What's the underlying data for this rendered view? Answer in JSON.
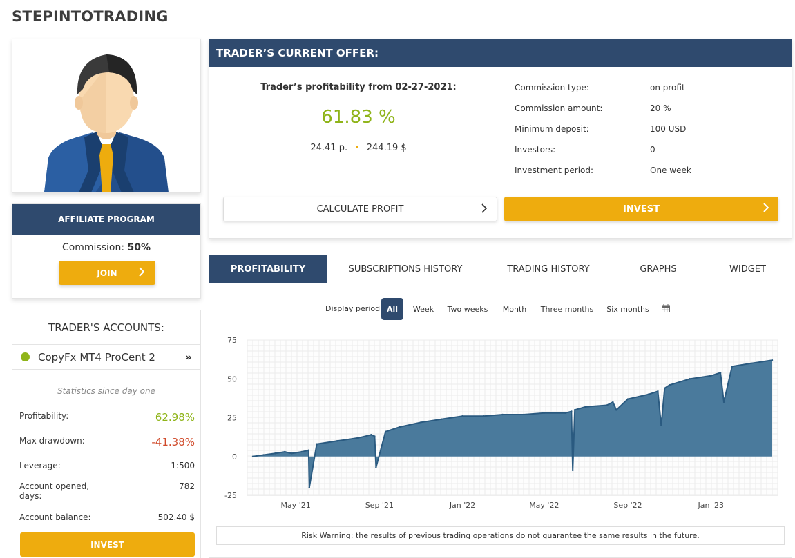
{
  "page": {
    "title": "STEPINTOTRADING"
  },
  "affiliate": {
    "header": "AFFILIATE PROGRAM",
    "commission_label": "Commission:",
    "commission_value": "50%",
    "join_label": "JOIN"
  },
  "accounts": {
    "header": "TRADER'S ACCOUNTS:",
    "account_name": "CopyFx MT4 ProCent 2",
    "status_color": "#8fb419",
    "stats_since": "Statistics since day one",
    "stats": {
      "profitability_label": "Profitability:",
      "profitability_value": "62.98%",
      "max_drawdown_label": "Max drawdown:",
      "max_drawdown_value": "-41.38%",
      "leverage_label": "Leverage:",
      "leverage_value": "1:500",
      "opened_label": "Account opened, days:",
      "opened_value": "782",
      "balance_label": "Account balance:",
      "balance_value": "502.40 $"
    },
    "invest_label": "INVEST"
  },
  "offer": {
    "header": "TRADER’S CURRENT OFFER:",
    "prof_label": "Trader’s profitability from 02-27-2021:",
    "prof_value": "61.83 %",
    "prof_points": "24.41 p.",
    "prof_money": "244.19 $",
    "commission_type_label": "Commission type:",
    "commission_type_value": "on profit",
    "commission_amount_label": "Commission amount:",
    "commission_amount_value": "20 %",
    "min_deposit_label": "Minimum deposit:",
    "min_deposit_value": "100 USD",
    "investors_label": "Investors:",
    "investors_value": "0",
    "period_label": "Investment period:",
    "period_value": "One week",
    "calculate_label": "CALCULATE PROFIT",
    "invest_label": "INVEST"
  },
  "tabs": [
    "PROFITABILITY",
    "SUBSCRIPTIONS HISTORY",
    "TRADING HISTORY",
    "GRAPHS",
    "WIDGET"
  ],
  "periods": {
    "label": "Display period:",
    "options": [
      "All",
      "Week",
      "Two weeks",
      "Month",
      "Three months",
      "Six months"
    ],
    "selected": "All"
  },
  "colors": {
    "accent": "#2f4a6e",
    "gold": "#eeac0e",
    "green": "#8fb419",
    "red": "#d04a2a",
    "area": "#4a7a9c"
  },
  "chart_data": {
    "type": "area",
    "title": "",
    "xlabel": "",
    "ylabel": "",
    "ylim": [
      -25,
      75
    ],
    "yticks": [
      75,
      50,
      25,
      0,
      -25
    ],
    "xticks": [
      {
        "label": "May '21",
        "date": "2021-05-01"
      },
      {
        "label": "Sep '21",
        "date": "2021-09-01"
      },
      {
        "label": "Jan '22",
        "date": "2022-01-01"
      },
      {
        "label": "May '22",
        "date": "2022-05-01"
      },
      {
        "label": "Sep '22",
        "date": "2022-09-01"
      },
      {
        "label": "Jan '23",
        "date": "2023-01-01"
      }
    ],
    "x": [
      "2021-02-27",
      "2021-03-15",
      "2021-04-01",
      "2021-04-15",
      "2021-04-25",
      "2021-05-10",
      "2021-05-20",
      "2021-05-21",
      "2021-06-01",
      "2021-07-01",
      "2021-08-01",
      "2021-08-20",
      "2021-08-25",
      "2021-08-27",
      "2021-09-10",
      "2021-10-01",
      "2021-11-01",
      "2021-12-01",
      "2022-01-01",
      "2022-02-01",
      "2022-03-01",
      "2022-04-01",
      "2022-05-01",
      "2022-06-01",
      "2022-06-10",
      "2022-06-12",
      "2022-06-15",
      "2022-07-01",
      "2022-08-01",
      "2022-08-10",
      "2022-08-15",
      "2022-09-01",
      "2022-10-01",
      "2022-10-15",
      "2022-10-20",
      "2022-10-25",
      "2022-11-01",
      "2022-12-01",
      "2023-01-01",
      "2023-01-15",
      "2023-01-20",
      "2023-02-01",
      "2023-03-01",
      "2023-04-01"
    ],
    "series": [
      {
        "name": "",
        "values": [
          0,
          1,
          2,
          3,
          2,
          3,
          4,
          -20,
          8,
          10,
          12,
          14,
          13,
          -7,
          16,
          19,
          22,
          24,
          26,
          26,
          27,
          27,
          28,
          28,
          29,
          -9,
          30,
          32,
          33,
          35,
          30,
          37,
          40,
          42,
          20,
          44,
          46,
          50,
          52,
          54,
          35,
          58,
          60,
          62
        ]
      }
    ]
  }
}
